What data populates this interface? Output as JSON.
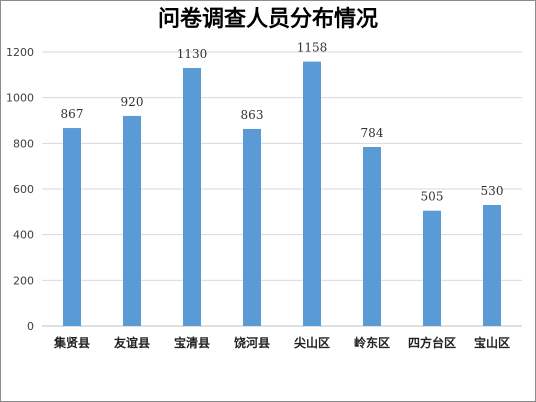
{
  "chart_data": {
    "type": "bar",
    "title": "问卷调查人员分布情况",
    "categories": [
      "集贤县",
      "友谊县",
      "宝清县",
      "饶河县",
      "尖山区",
      "岭东区",
      "四方台区",
      "宝山区"
    ],
    "values": [
      867,
      920,
      1130,
      863,
      1158,
      784,
      505,
      530
    ],
    "data_labels": [
      "867",
      "920",
      "1130",
      "863",
      "1158",
      "784",
      "505",
      "530"
    ],
    "yticks": [
      0,
      200,
      400,
      600,
      800,
      1000,
      1200
    ],
    "ytick_labels": [
      "0",
      "200",
      "400",
      "600",
      "800",
      "1000",
      "1200"
    ],
    "ylim": [
      0,
      1200
    ],
    "grid": true,
    "legend": "none",
    "bar_color": "#5b9bd5",
    "grid_color": "#d9d9d9"
  }
}
